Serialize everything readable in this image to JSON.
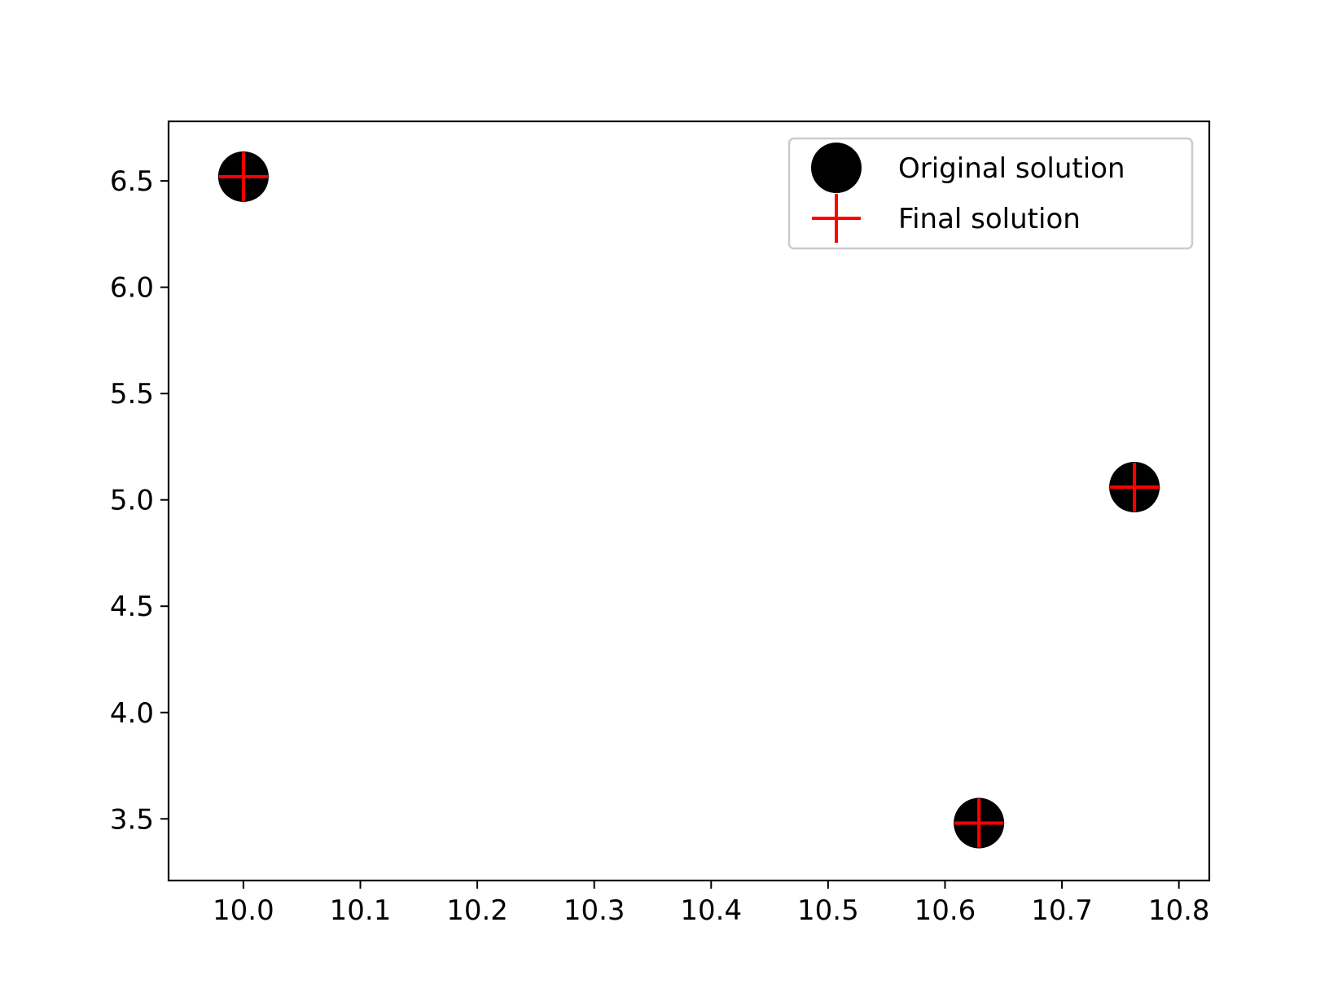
{
  "chart_data": {
    "type": "scatter",
    "title": "",
    "xlabel": "",
    "ylabel": "",
    "xlim": [
      9.936,
      10.826
    ],
    "ylim": [
      3.21,
      6.78
    ],
    "xticks": [
      10.0,
      10.1,
      10.2,
      10.3,
      10.4,
      10.5,
      10.6,
      10.7,
      10.8
    ],
    "xtick_labels": [
      "10.0",
      "10.1",
      "10.2",
      "10.3",
      "10.4",
      "10.5",
      "10.6",
      "10.7",
      "10.8"
    ],
    "yticks": [
      3.5,
      4.0,
      4.5,
      5.0,
      5.5,
      6.0,
      6.5
    ],
    "ytick_labels": [
      "3.5",
      "4.0",
      "4.5",
      "5.0",
      "5.5",
      "6.0",
      "6.5"
    ],
    "grid": false,
    "legend_position": "top-right",
    "series": [
      {
        "name": "Original solution",
        "marker": "circle",
        "color": "#000000",
        "x": [
          10.0,
          10.629,
          10.762
        ],
        "y": [
          6.52,
          3.48,
          5.06
        ]
      },
      {
        "name": "Final solution",
        "marker": "plus",
        "color": "#ff0000",
        "x": [
          10.0,
          10.629,
          10.762
        ],
        "y": [
          6.52,
          3.48,
          5.06
        ]
      }
    ]
  }
}
